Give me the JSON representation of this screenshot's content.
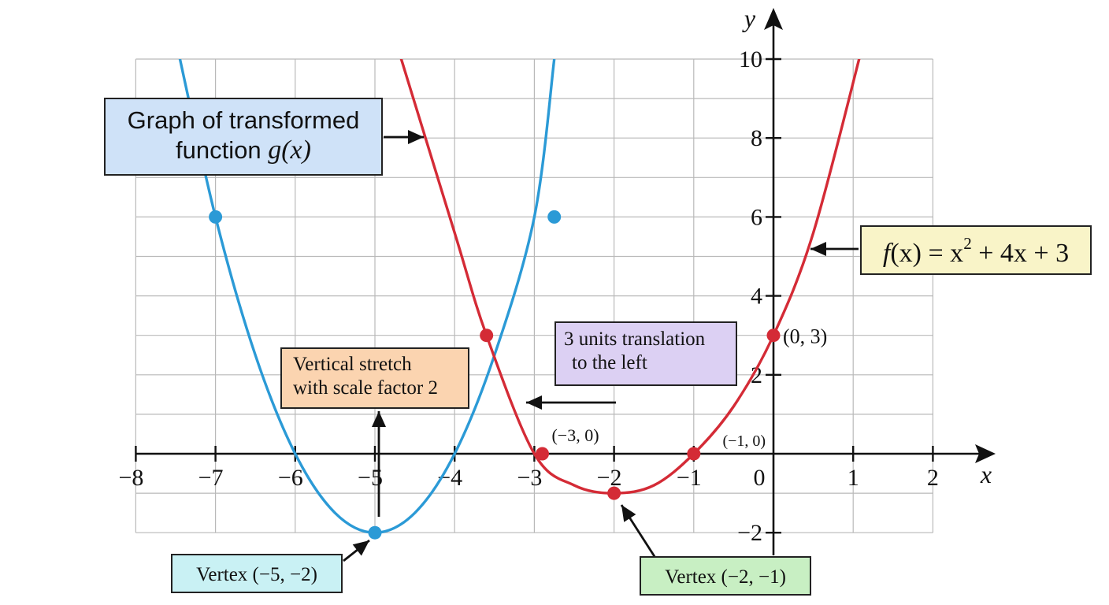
{
  "chart_data": {
    "type": "line",
    "xlabel": "x",
    "ylabel": "y",
    "xlim": [
      -8,
      2
    ],
    "ylim": [
      -2,
      10
    ],
    "grid": true,
    "x_tick_labels": [
      "−8",
      "−7",
      "−6",
      "−5",
      "−4",
      "−3",
      "−2",
      "−1",
      "0",
      "1",
      "2"
    ],
    "y_tick_labels": [
      "−2",
      "2",
      "4",
      "6",
      "8",
      "10"
    ],
    "series": [
      {
        "color": "#2b9ad6",
        "x": [
          -7.5,
          -7.0,
          -6.5,
          -6.0,
          -5.5,
          -5.0,
          -4.5,
          -4.0,
          -3.5,
          -3.0,
          -2.75
        ],
        "y": [
          10.5,
          6.0,
          2.5,
          0.0,
          -1.5,
          -2.0,
          -1.5,
          0.0,
          2.5,
          6.0,
          10.0
        ],
        "points": [
          [
            -7,
            6
          ],
          [
            -2.75,
            6
          ],
          [
            -5,
            -2
          ]
        ]
      },
      {
        "color": "#d42b36",
        "x": [
          -4.7,
          -4.0,
          -3.6,
          -3.0,
          -2.5,
          -2.0,
          -1.5,
          -1.0,
          -0.5,
          0.0,
          0.5,
          1.1
        ],
        "y": [
          10.2,
          5.6,
          3.0,
          0.0,
          -0.8,
          -1.0,
          -0.8,
          0.0,
          1.2,
          3.0,
          5.6,
          10.2
        ],
        "points": [
          [
            -3.6,
            3.0
          ],
          [
            -2.9,
            0
          ],
          [
            -2,
            -1
          ],
          [
            -1,
            0
          ],
          [
            0,
            3
          ]
        ]
      }
    ],
    "point_labels": [
      {
        "text": "(0, 3)",
        "at": [
          0,
          3
        ]
      },
      {
        "text": "(−3, 0)",
        "at": [
          -2.9,
          0
        ]
      },
      {
        "text": "(−1, 0)",
        "at": [
          -1,
          0
        ]
      }
    ]
  },
  "callouts": {
    "g_graph": {
      "line1": "Graph of transformed",
      "line2_prefix": "function ",
      "line2_math": "g(x)"
    },
    "f_equation": {
      "f": "f",
      "lhs_rest": "(x) = x",
      "exp": "2",
      "rhs": " + 4x + 3"
    },
    "vertical_stretch": {
      "line1": "Vertical stretch",
      "line2": "with scale factor 2"
    },
    "translation": {
      "line1": "3 units translation",
      "line2": "to the left"
    },
    "vertex_g": "Vertex (−5, −2)",
    "vertex_f": "Vertex (−2, −1)"
  },
  "colors": {
    "g_curve": "#2b9ad6",
    "f_curve": "#d42b36",
    "grid": "#b9b9b9"
  }
}
